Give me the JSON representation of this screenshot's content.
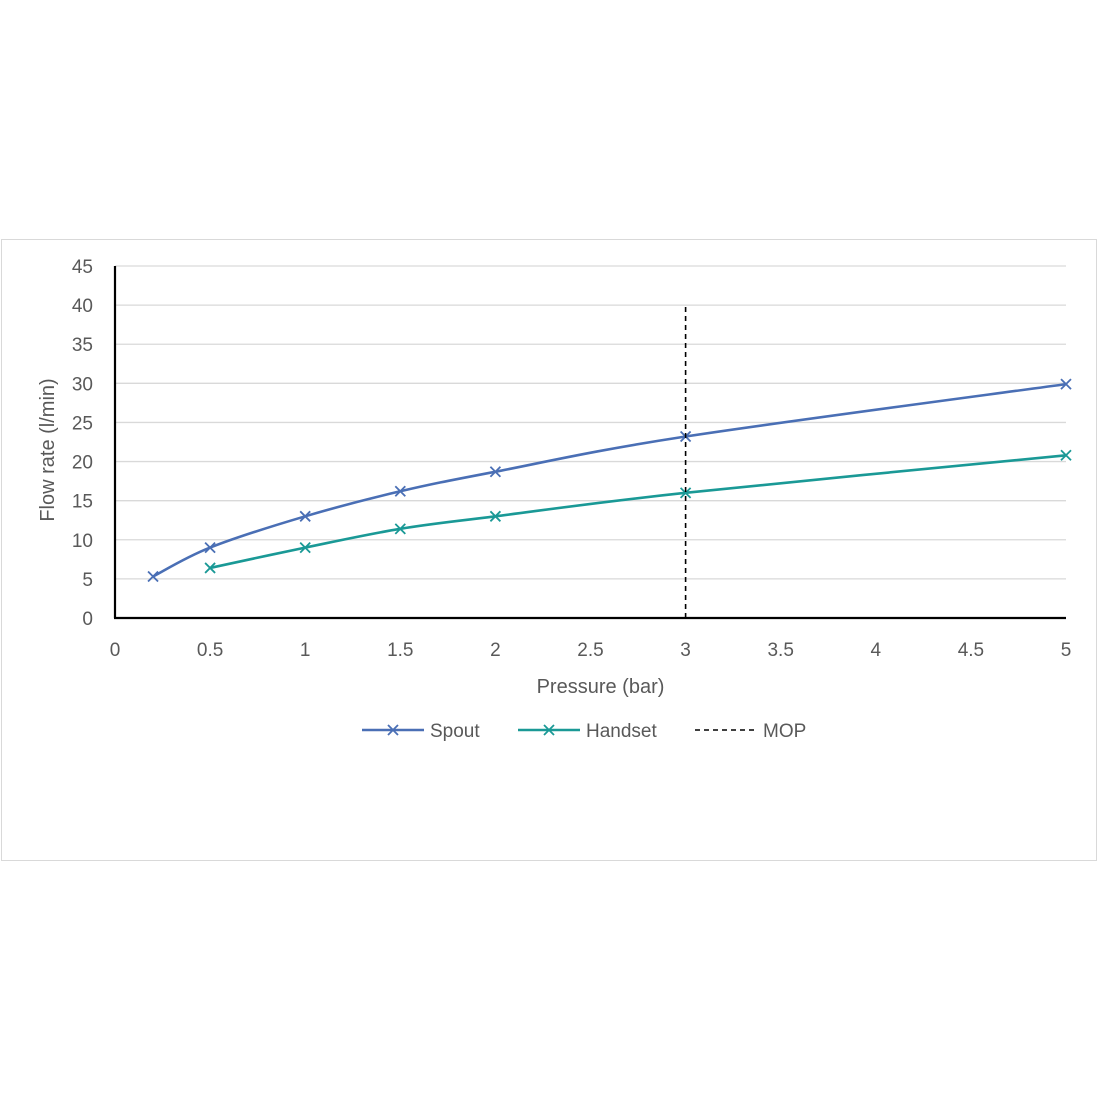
{
  "chart_data": {
    "type": "line",
    "title": "",
    "xlabel": "Pressure (bar)",
    "ylabel": "Flow rate (l/min)",
    "xlim": [
      0,
      5
    ],
    "ylim": [
      0,
      45
    ],
    "xticks": [
      "0",
      "0.5",
      "1",
      "1.5",
      "2",
      "2.5",
      "3",
      "3.5",
      "4",
      "4.5",
      "5"
    ],
    "yticks": [
      "0",
      "5",
      "10",
      "15",
      "20",
      "25",
      "30",
      "35",
      "40",
      "45"
    ],
    "grid": "horizontal",
    "legend_position": "bottom",
    "series": [
      {
        "name": "Spout",
        "color": "#4a6fb5",
        "marker": "x",
        "smooth": true,
        "points": [
          [
            0.2,
            5.3
          ],
          [
            0.5,
            9.0
          ],
          [
            1.0,
            13.0
          ],
          [
            1.5,
            16.2
          ],
          [
            2.0,
            18.7
          ],
          [
            3.0,
            23.2
          ],
          [
            5.0,
            29.9
          ]
        ]
      },
      {
        "name": "Handset",
        "color": "#1a9996",
        "marker": "x",
        "smooth": true,
        "points": [
          [
            0.5,
            6.4
          ],
          [
            1.0,
            9.0
          ],
          [
            1.5,
            11.4
          ],
          [
            2.0,
            13.0
          ],
          [
            3.0,
            16.0
          ],
          [
            5.0,
            20.8
          ]
        ]
      },
      {
        "name": "MOP",
        "color": "#000000",
        "style": "dashed",
        "points": [
          [
            3.0,
            0
          ],
          [
            3.0,
            40
          ]
        ]
      }
    ]
  }
}
